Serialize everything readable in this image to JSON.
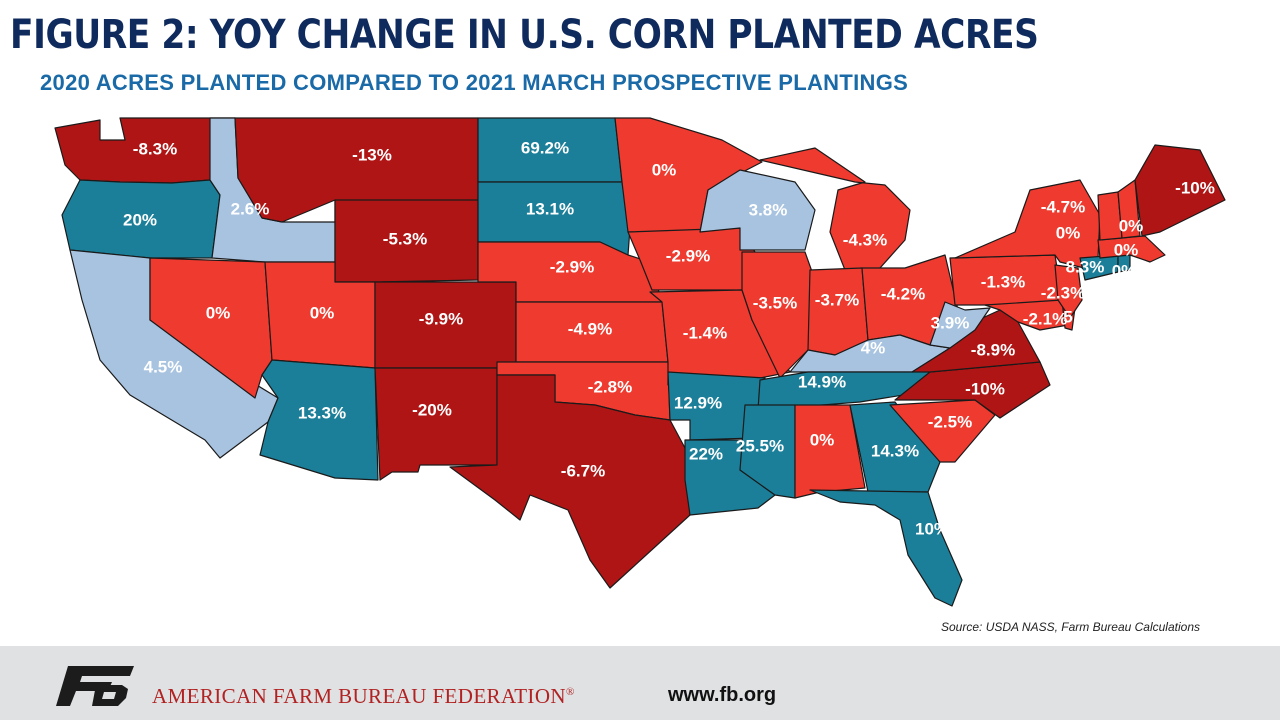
{
  "header": {
    "title": "FIGURE 2: YOY CHANGE IN U.S. CORN PLANTED ACRES",
    "subtitle": "2020 ACRES PLANTED COMPARED TO 2021 MARCH PROSPECTIVE PLANTINGS"
  },
  "map": {
    "colors": {
      "large_decrease": "#b01515",
      "decrease": "#ee3a2f",
      "large_increase": "#1b7f99",
      "increase": "#a8c3e0"
    },
    "states": [
      {
        "id": "WA",
        "value": "-8.3%",
        "class": "large_decrease"
      },
      {
        "id": "OR",
        "value": "20%",
        "class": "large_increase"
      },
      {
        "id": "CA",
        "value": "4.5%",
        "class": "increase"
      },
      {
        "id": "ID",
        "value": "2.6%",
        "class": "increase"
      },
      {
        "id": "NV",
        "value": "0%",
        "class": "decrease"
      },
      {
        "id": "MT",
        "value": "-13%",
        "class": "large_decrease"
      },
      {
        "id": "WY",
        "value": "-5.3%",
        "class": "large_decrease"
      },
      {
        "id": "UT",
        "value": "0%",
        "class": "decrease"
      },
      {
        "id": "AZ",
        "value": "13.3%",
        "class": "large_increase"
      },
      {
        "id": "CO",
        "value": "-9.9%",
        "class": "large_decrease"
      },
      {
        "id": "NM",
        "value": "-20%",
        "class": "large_decrease"
      },
      {
        "id": "ND",
        "value": "69.2%",
        "class": "large_increase"
      },
      {
        "id": "SD",
        "value": "13.1%",
        "class": "large_increase"
      },
      {
        "id": "NE",
        "value": "-2.9%",
        "class": "decrease"
      },
      {
        "id": "KS",
        "value": "-4.9%",
        "class": "decrease"
      },
      {
        "id": "OK",
        "value": "-2.8%",
        "class": "decrease"
      },
      {
        "id": "TX",
        "value": "-6.7%",
        "class": "large_decrease"
      },
      {
        "id": "MN",
        "value": "0%",
        "class": "decrease"
      },
      {
        "id": "IA",
        "value": "-2.9%",
        "class": "decrease"
      },
      {
        "id": "MO",
        "value": "-1.4%",
        "class": "decrease"
      },
      {
        "id": "AR",
        "value": "12.9%",
        "class": "large_increase"
      },
      {
        "id": "LA",
        "value": "22%",
        "class": "large_increase"
      },
      {
        "id": "WI",
        "value": "3.8%",
        "class": "increase"
      },
      {
        "id": "IL",
        "value": "-3.5%",
        "class": "decrease"
      },
      {
        "id": "MI",
        "value": "-4.3%",
        "class": "decrease"
      },
      {
        "id": "IN",
        "value": "-3.7%",
        "class": "decrease"
      },
      {
        "id": "OH",
        "value": "-4.2%",
        "class": "decrease"
      },
      {
        "id": "KY",
        "value": "4%",
        "class": "increase"
      },
      {
        "id": "TN",
        "value": "14.9%",
        "class": "large_increase"
      },
      {
        "id": "MS",
        "value": "25.5%",
        "class": "large_increase"
      },
      {
        "id": "AL",
        "value": "0%",
        "class": "decrease"
      },
      {
        "id": "GA",
        "value": "14.3%",
        "class": "large_increase"
      },
      {
        "id": "FL",
        "value": "10%",
        "class": "large_increase"
      },
      {
        "id": "SC",
        "value": "-2.5%",
        "class": "decrease"
      },
      {
        "id": "NC",
        "value": "-10%",
        "class": "large_decrease"
      },
      {
        "id": "VA",
        "value": "-8.9%",
        "class": "large_decrease"
      },
      {
        "id": "WV",
        "value": "3.9%",
        "class": "increase"
      },
      {
        "id": "PA",
        "value": "-1.3%",
        "class": "decrease"
      },
      {
        "id": "NY",
        "value": "-4.7%",
        "class": "decrease"
      },
      {
        "id": "MD",
        "value": "-2.1%",
        "class": "decrease"
      },
      {
        "id": "DE",
        "value": "5",
        "class": "decrease"
      },
      {
        "id": "NJ",
        "value": "-2.3%",
        "class": "decrease"
      },
      {
        "id": "CT",
        "value": "8.3%",
        "class": "large_increase"
      },
      {
        "id": "RI",
        "value": "0%",
        "class": "large_increase"
      },
      {
        "id": "MA",
        "value": "0%",
        "class": "decrease"
      },
      {
        "id": "VT",
        "value": "0%",
        "class": "decrease"
      },
      {
        "id": "NH",
        "value": "0%",
        "class": "decrease"
      },
      {
        "id": "ME",
        "value": "-10%",
        "class": "large_decrease"
      }
    ]
  },
  "source": "Source: USDA NASS, Farm Bureau Calculations",
  "footer": {
    "org_name": "AMERICAN FARM BUREAU FEDERATION",
    "registered_mark": "®",
    "url": "www.fb.org",
    "logo_text": "FB"
  }
}
